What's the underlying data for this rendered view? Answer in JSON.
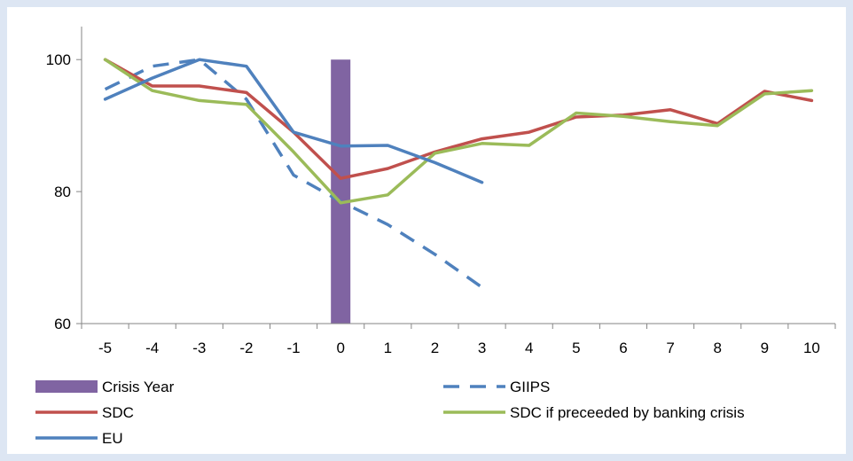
{
  "chart_data": {
    "type": "line",
    "title": "",
    "xlabel": "",
    "ylabel": "",
    "x": [
      -5,
      -4,
      -3,
      -2,
      -1,
      0,
      1,
      2,
      3,
      4,
      5,
      6,
      7,
      8,
      9,
      10
    ],
    "x_tick_labels": [
      "-5",
      "-4",
      "-3",
      "-2",
      "-1",
      "0",
      "1",
      "2",
      "3",
      "4",
      "5",
      "6",
      "7",
      "8",
      "9",
      "10"
    ],
    "ylim": [
      60,
      105
    ],
    "y_ticks": [
      60,
      80,
      100
    ],
    "y_tick_labels": [
      "60",
      "80",
      "100"
    ],
    "grid": false,
    "legend_position": "bottom",
    "bar": {
      "name": "Crisis Year",
      "x": 0,
      "value": 100,
      "color": "#8064a2"
    },
    "series": [
      {
        "name": "GIIPS",
        "color": "#4f81bd",
        "dashed": true,
        "values": [
          95.5,
          99,
          100,
          94,
          82.5,
          78.5,
          75,
          70.5,
          65.5,
          null,
          null,
          null,
          null,
          null,
          null,
          null
        ]
      },
      {
        "name": "SDC",
        "color": "#c0504d",
        "dashed": false,
        "values": [
          100,
          96,
          96,
          95,
          89,
          82,
          83.5,
          86,
          88,
          89,
          91.3,
          91.6,
          92.4,
          90.3,
          95.2,
          93.8
        ]
      },
      {
        "name": "SDC if preceeded by banking crisis",
        "color": "#9bbb59",
        "dashed": false,
        "values": [
          100,
          95.3,
          93.8,
          93.2,
          86,
          78.3,
          79.5,
          85.8,
          87.3,
          87,
          91.9,
          91.4,
          90.6,
          90,
          94.8,
          95.3
        ]
      },
      {
        "name": "EU",
        "color": "#4f81bd",
        "dashed": false,
        "values": [
          94,
          97.2,
          100,
          99,
          89,
          86.9,
          87,
          84.4,
          81.4,
          null,
          null,
          null,
          null,
          null,
          null,
          null
        ]
      }
    ]
  }
}
